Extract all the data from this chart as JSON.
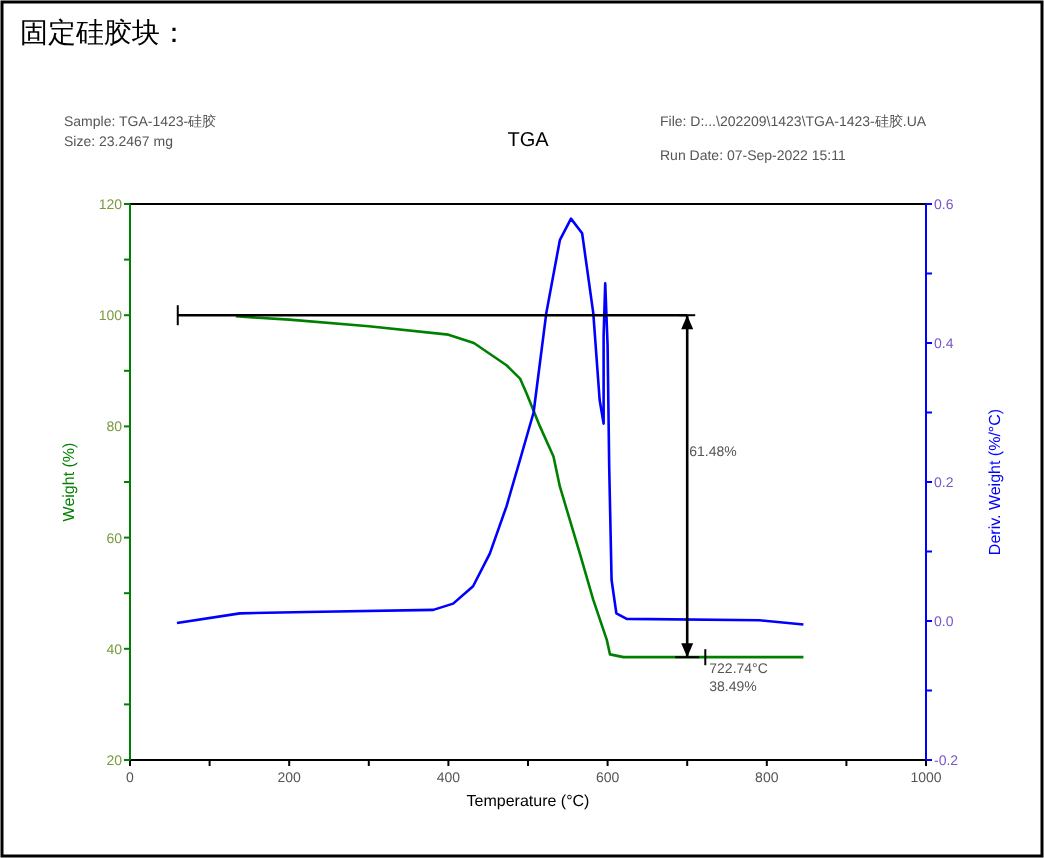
{
  "chart_data": {
    "type": "line",
    "title": "固定硅胶块：",
    "subtitle": "TGA",
    "xlabel": "Temperature (°C)",
    "ylabel": "Weight (%)",
    "y2label": "Deriv. Weight (%/°C)",
    "annotations": [
      "Sample: TGA-1423-硅胶",
      "Size:  23.2467 mg",
      "File: D:...\\202209\\1423\\TGA-1423-硅胶.UA",
      "Run Date: 07-Sep-2022 15:11",
      "61.48%",
      {
        "text": "722.74°C",
        "x": 722.74,
        "y": 38.49
      },
      "38.49%"
    ],
    "xlim": [
      0,
      1000
    ],
    "xticks": [
      0,
      {
        "value": 100,
        "label": null
      },
      200,
      {
        "value": 300,
        "label": null
      },
      400,
      {
        "value": 500,
        "label": null
      },
      600,
      {
        "value": 700,
        "label": null
      },
      800,
      {
        "value": 900,
        "label": null
      },
      1000
    ],
    "ylim": [
      20,
      120
    ],
    "yticks": [
      20,
      {
        "value": 30,
        "label": null
      },
      40,
      {
        "value": 50,
        "label": null
      },
      60,
      {
        "value": 70,
        "label": null
      },
      80,
      {
        "value": 90,
        "label": null
      },
      100,
      {
        "value": 110,
        "label": null
      },
      120
    ],
    "y2lim": [
      -0.2,
      0.6
    ],
    "y2ticks": [
      {
        "value": -0.2,
        "label": "-0.2"
      },
      {
        "value": -0.1,
        "label": null
      },
      {
        "value": 0,
        "label": "0.0"
      },
      {
        "value": 0.1,
        "label": null
      },
      {
        "value": 0.2,
        "label": "0.2"
      },
      {
        "value": 0.3,
        "label": null
      },
      {
        "value": 0.4,
        "label": "0.4"
      },
      {
        "value": 0.5,
        "label": null
      },
      {
        "value": 0.6,
        "label": "0.6"
      }
    ],
    "grid": false,
    "series": [
      {
        "color": "#008000",
        "x": [
          133,
          200,
          300,
          400,
          432,
          473,
          490,
          498,
          515,
          532,
          540,
          565,
          582,
          599,
          603,
          620,
          700,
          846
        ],
        "values": [
          99.8,
          99.2,
          98.0,
          96.5,
          95,
          91,
          88.6,
          86,
          80,
          74.6,
          69.2,
          57.2,
          48.8,
          41.6,
          39,
          38.5,
          38.5,
          38.5
        ]
      },
      {
        "color": "#0000ff",
        "axis": "y2",
        "x": [
          59,
          138,
          222,
          381,
          406,
          431,
          452,
          473,
          490,
          507,
          523,
          540,
          554,
          568,
          582,
          590,
          595,
          595,
          597,
          600,
          602,
          605,
          611,
          624,
          791,
          846
        ],
        "values": [
          -0.003,
          0.011,
          0.013,
          0.016,
          0.025,
          0.05,
          0.097,
          0.165,
          0.232,
          0.3,
          0.443,
          0.548,
          0.579,
          0.558,
          0.443,
          0.318,
          0.284,
          0.41,
          0.486,
          0.396,
          0.222,
          0.059,
          0.011,
          0.003,
          0.001,
          -0.005
        ]
      },
      {
        "color": "#000000",
        "x": [
          60,
          700
        ],
        "values": [
          100,
          100
        ]
      }
    ]
  }
}
